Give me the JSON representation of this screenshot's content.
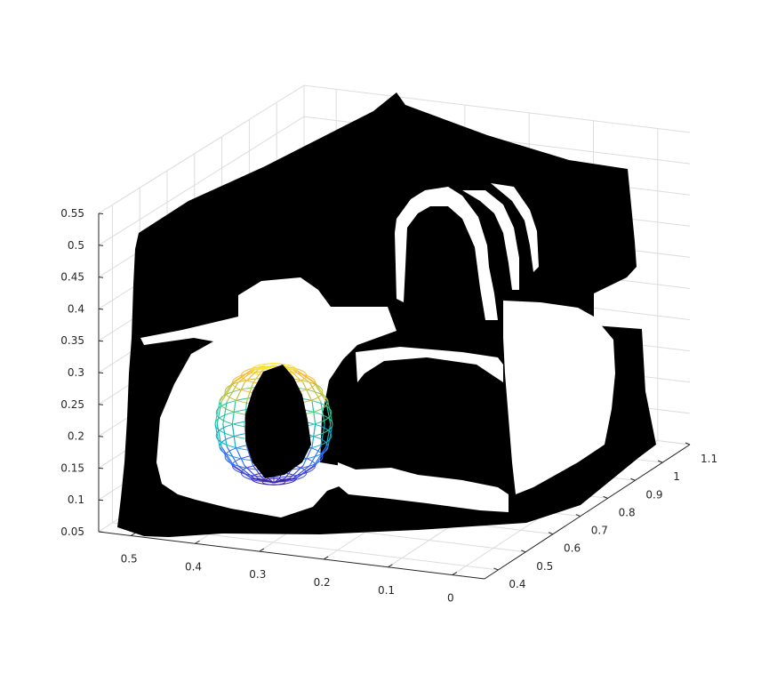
{
  "chart_data": {
    "type": "scatter",
    "title": "",
    "xlabel": "",
    "ylabel": "",
    "zlabel": "",
    "grid": true,
    "x_axis": {
      "ticks": [
        0.5,
        0.4,
        0.3,
        0.2,
        0.1,
        0
      ],
      "labels": [
        "0.5",
        "0.4",
        "0.3",
        "0.2",
        "0.1",
        "0"
      ],
      "lim": [
        -0.05,
        0.55
      ]
    },
    "y_axis": {
      "ticks": [
        0.4,
        0.5,
        0.6,
        0.7,
        0.8,
        0.9,
        1,
        1.1
      ],
      "labels": [
        "0.4",
        "0.5",
        "0.6",
        "0.7",
        "0.8",
        "0.9",
        "1",
        "1.1"
      ],
      "lim": [
        0.35,
        1.1
      ]
    },
    "z_axis": {
      "ticks": [
        0.05,
        0.1,
        0.15,
        0.2,
        0.25,
        0.3,
        0.35,
        0.4,
        0.45,
        0.5,
        0.55
      ],
      "labels": [
        "0.05",
        "0.1",
        "0.15",
        "0.2",
        "0.25",
        "0.3",
        "0.35",
        "0.4",
        "0.45",
        "0.5",
        "0.55"
      ],
      "lim": [
        0.05,
        0.55
      ]
    },
    "series": [
      {
        "kind": "point-cloud",
        "color": "#000000"
      },
      {
        "kind": "wireframe-sphere",
        "colormap": "parula",
        "center": [
          0.4,
          0.45,
          0.2
        ],
        "radius": 0.1
      }
    ]
  }
}
